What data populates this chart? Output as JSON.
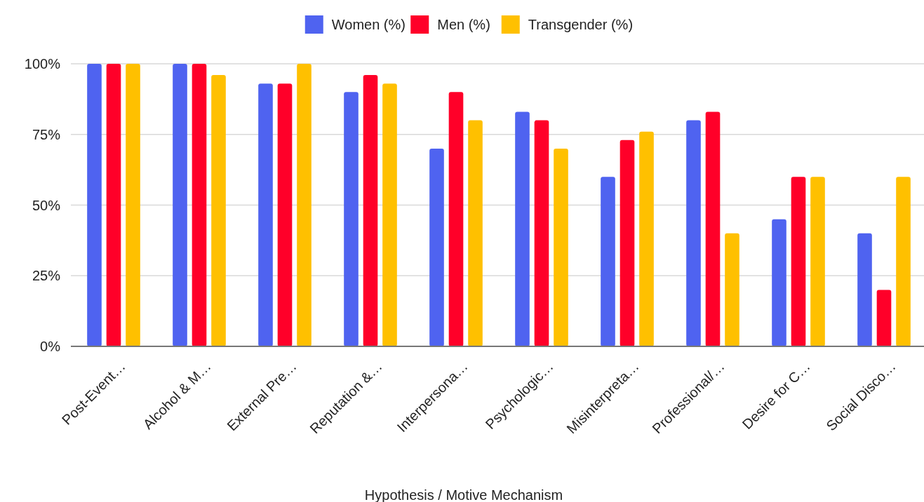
{
  "chart_data": {
    "type": "bar",
    "xlabel": "Hypothesis / Motive Mechanism",
    "categories": [
      "Post-Event…",
      "Alcohol & M…",
      "External Pre…",
      "Reputation &…",
      "Interpersona…",
      "Psychologic…",
      "Misinterpreta…",
      "Professional/…",
      "Desire for C…",
      "Social Disco…"
    ],
    "series": [
      {
        "name": "Women (%)",
        "color": "#4f63f0",
        "values": [
          100,
          100,
          93,
          90,
          70,
          83,
          60,
          80,
          45,
          40
        ]
      },
      {
        "name": "Men (%)",
        "color": "#ff0029",
        "values": [
          100,
          100,
          93,
          96,
          90,
          80,
          73,
          83,
          60,
          20
        ]
      },
      {
        "name": "Transgender (%)",
        "color": "#ffc000",
        "values": [
          100,
          96,
          100,
          93,
          80,
          70,
          76,
          40,
          60,
          60
        ]
      }
    ],
    "ylim": [
      0,
      100
    ],
    "yticks": [
      {
        "value": 0,
        "label": "0%"
      },
      {
        "value": 25,
        "label": "25%"
      },
      {
        "value": 50,
        "label": "50%"
      },
      {
        "value": 75,
        "label": "75%"
      },
      {
        "value": 100,
        "label": "100%"
      }
    ],
    "grid": "y",
    "legend": "top"
  }
}
